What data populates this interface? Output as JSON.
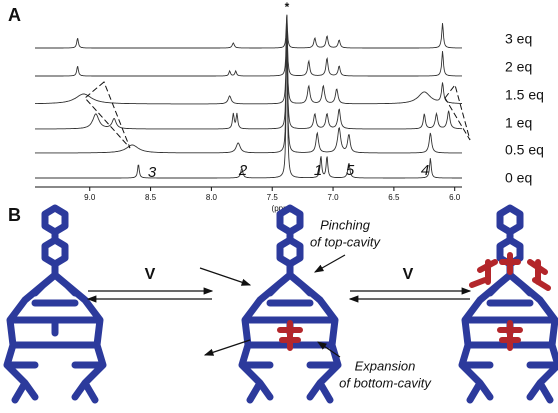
{
  "panel_a": {
    "label": "A",
    "star": "*",
    "xlim": [
      9.45,
      5.94
    ],
    "xticks": [
      {
        "value": 9,
        "label": "9.0"
      },
      8.5,
      {
        "value": 8,
        "label": "8.0"
      },
      7.5,
      {
        "value": 7,
        "label": "7.0"
      },
      6.5,
      {
        "value": 6,
        "label": "6.0"
      }
    ],
    "xlabel": "(ppm)",
    "traces": [
      "3 eq",
      "2 eq",
      "1.5 eq",
      "1 eq",
      "0.5 eq",
      "0 eq"
    ],
    "peak_labels": [
      "3",
      "2",
      "1",
      "5",
      "4"
    ]
  },
  "panel_b": {
    "label": "B",
    "arrow_labels": [
      "V",
      "V"
    ],
    "annotations": [
      "Pinching",
      "of top-cavity",
      "Expansion",
      "of bottom-cavity"
    ]
  }
}
